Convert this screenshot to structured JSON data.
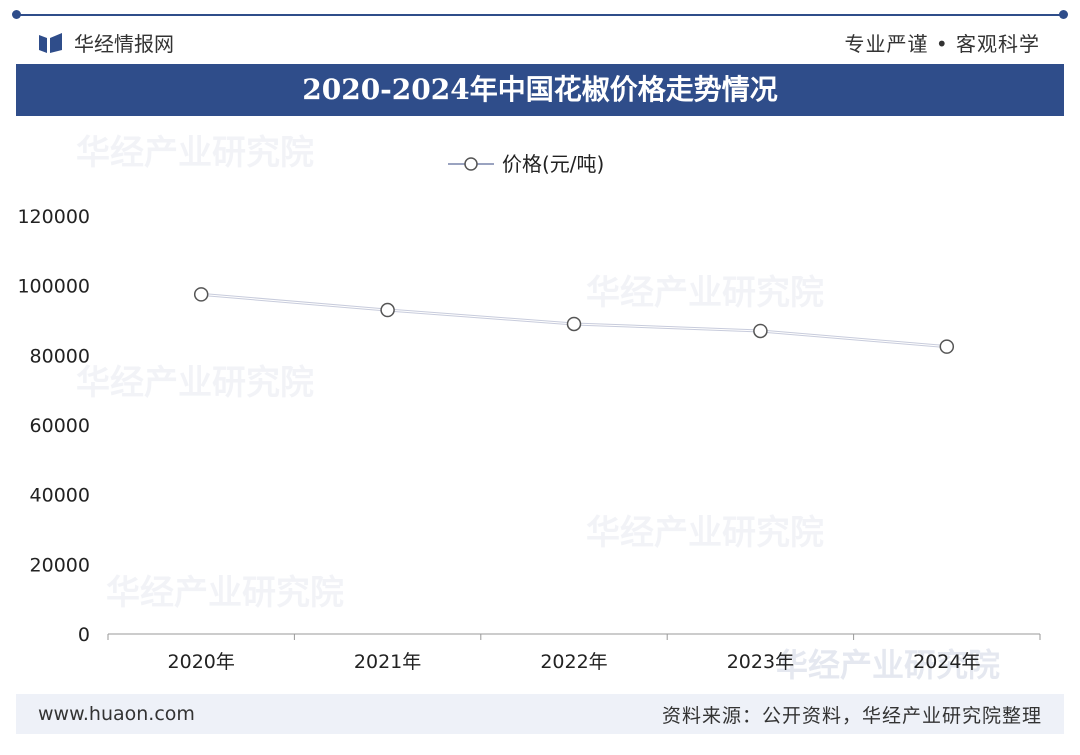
{
  "header": {
    "brand_name": "华经情报网",
    "motto": "专业严谨 • 客观科学",
    "title": "2020-2024年中国花椒价格走势情况"
  },
  "watermark": {
    "name": "华经产业研究院",
    "url": "www.huaon.com"
  },
  "footer": {
    "website": "www.huaon.com",
    "source": "资料来源：公开资料，华经产业研究院整理"
  },
  "colors": {
    "accent": "#2f4d8a",
    "line": "#9aa3c0"
  },
  "chart_data": {
    "type": "line",
    "title": "",
    "xlabel": "",
    "ylabel": "",
    "categories": [
      "2020年",
      "2021年",
      "2022年",
      "2023年",
      "2024年"
    ],
    "series": [
      {
        "name": "价格(元/吨)",
        "values": [
          97500,
          93000,
          89000,
          87000,
          82500
        ]
      }
    ],
    "ylim": [
      0,
      120000
    ],
    "yticks": [
      0,
      20000,
      40000,
      60000,
      80000,
      100000,
      120000
    ],
    "legend_position": "top-center",
    "grid": false
  }
}
